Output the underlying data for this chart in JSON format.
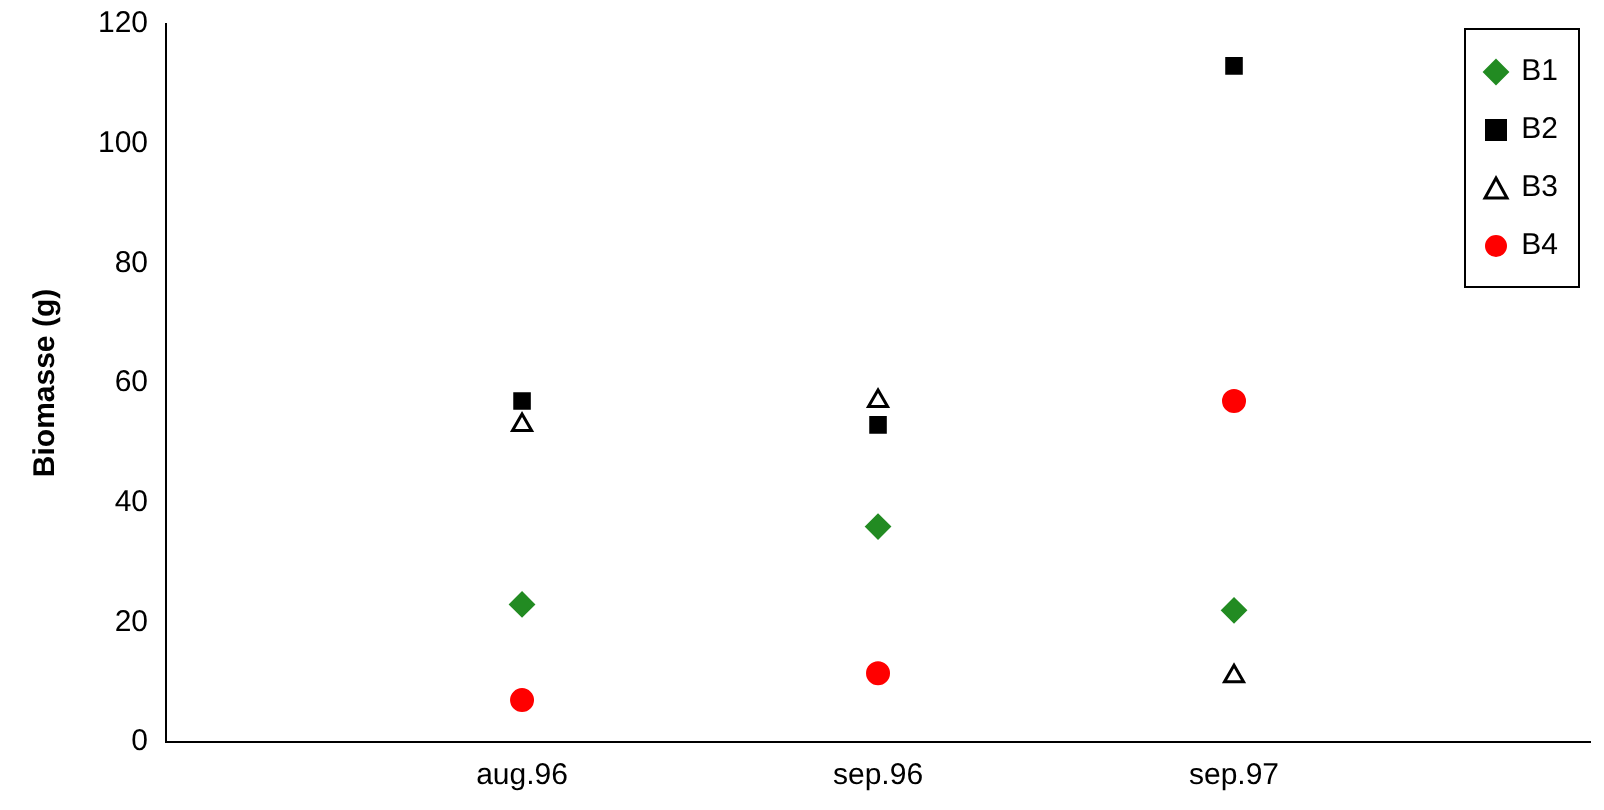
{
  "chart_data": {
    "type": "scatter",
    "ylabel": "Biomasse (g)",
    "categories": [
      "aug.96",
      "sep.96",
      "sep.97"
    ],
    "ylim": [
      0,
      120
    ],
    "yticks": [
      0,
      20,
      40,
      60,
      80,
      100,
      120
    ],
    "grid": false,
    "legend": "top right",
    "series": [
      {
        "name": "B1",
        "color": "#228b22",
        "marker": "diamond",
        "values": [
          23,
          36,
          22
        ]
      },
      {
        "name": "B2",
        "color": "#000000",
        "marker": "square",
        "values": [
          57,
          53,
          113
        ]
      },
      {
        "name": "B3",
        "color": "#000000",
        "marker": "triangle",
        "values": [
          53,
          57,
          11
        ]
      },
      {
        "name": "B4",
        "color": "#ff0000",
        "marker": "circle",
        "values": [
          7,
          11.5,
          57
        ]
      }
    ]
  }
}
